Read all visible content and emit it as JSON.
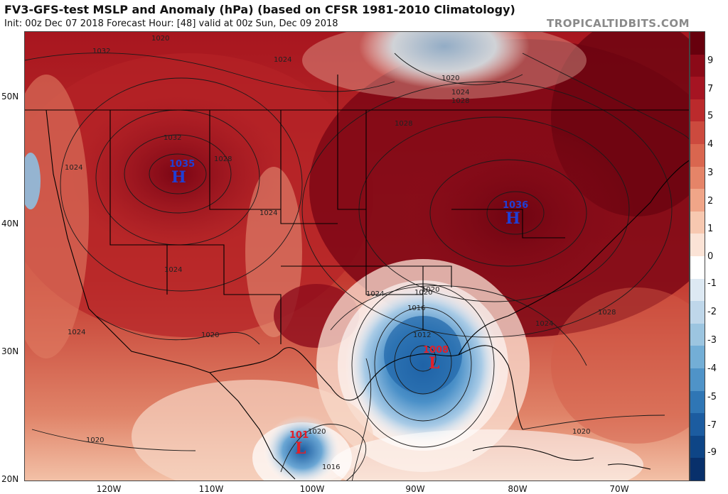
{
  "header": {
    "title": "FV3-GFS-test MSLP and Anomaly (hPa) (based on CFSR 1981-2010 Climatology)",
    "subtitle": "Init: 00z Dec 07 2018   Forecast Hour: [48]   valid at 00z Sun, Dec 09 2018",
    "brand": "TROPICALTIDBITS.COM"
  },
  "axes": {
    "lat_labels": [
      "50N",
      "40N",
      "30N",
      "20N"
    ],
    "lon_labels": [
      "120W",
      "110W",
      "100W",
      "90W",
      "80W",
      "70W"
    ]
  },
  "colorbar": {
    "labels": [
      "9",
      "7",
      "5",
      "4",
      "3",
      "2",
      "1",
      "0",
      "-1",
      "-2",
      "-3",
      "-4",
      "-5",
      "-7",
      "-9"
    ],
    "colors": [
      "#67000d",
      "#8b0a18",
      "#a51422",
      "#bb2a2c",
      "#cc4a3e",
      "#d9664f",
      "#e58468",
      "#f0a588",
      "#f7c8b0",
      "#fbe3d6",
      "#ffffff",
      "#dde9f3",
      "#bfd7ea",
      "#9cc5e0",
      "#73aed6",
      "#4f93c8",
      "#2f76b5",
      "#1c5ca0",
      "#0e4586",
      "#08306b"
    ]
  },
  "map": {
    "pressure_centers": [
      {
        "type": "H",
        "value": "1035"
      },
      {
        "type": "H",
        "value": "1036"
      },
      {
        "type": "L",
        "value": "1008"
      },
      {
        "type": "L",
        "value": "101"
      }
    ],
    "isobar_labels": [
      "1020",
      "1024",
      "1028",
      "1032",
      "1024",
      "1028",
      "1032",
      "1024",
      "1020",
      "1024",
      "1028",
      "1024",
      "1020",
      "1024",
      "1020",
      "1016",
      "1012",
      "1020",
      "1024",
      "1028",
      "1020",
      "1016",
      "1020",
      "1024",
      "1020"
    ],
    "colors": {
      "high_label": "#1f3fd6",
      "low_label": "#e0202a"
    }
  }
}
